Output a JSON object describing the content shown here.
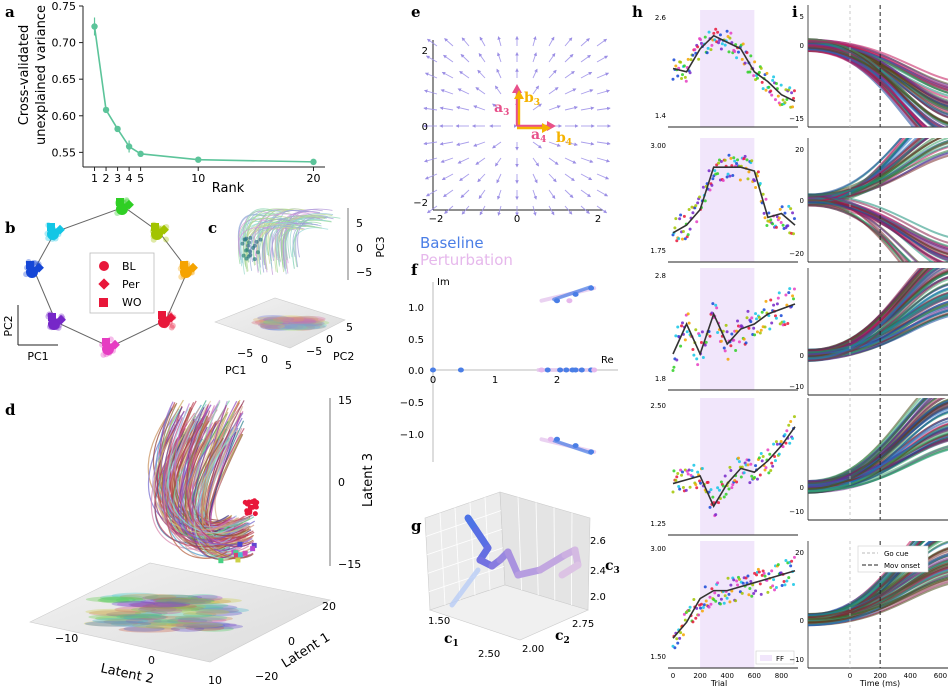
{
  "panel_labels": {
    "a": "a",
    "b": "b",
    "c": "c",
    "d": "d",
    "e": "e",
    "f": "f",
    "g": "g",
    "h": "h",
    "i": "i"
  },
  "panel_a": {
    "ylabel_line1": "Cross-validated",
    "ylabel_line2": "unexplained variance",
    "xlabel": "Rank",
    "yticks": [
      "0.55",
      "0.60",
      "0.65",
      "0.70",
      "0.75"
    ],
    "xticks": [
      "1",
      "2",
      "3",
      "4",
      "5",
      "10",
      "20"
    ]
  },
  "panel_b": {
    "legend": [
      "BL",
      "Per",
      "WO"
    ],
    "axis_pc1": "PC1",
    "axis_pc2": "PC2",
    "colors": [
      "#e8173a",
      "#f5a300",
      "#a2c400",
      "#4ac21a",
      "#13c6e5",
      "#1546d6",
      "#7627c8",
      "#e63dc2"
    ]
  },
  "panel_c": {
    "xlabel": "PC1",
    "ylabel": "PC2",
    "zlabel": "PC3",
    "x_ticks": [
      "−5",
      "0",
      "5"
    ],
    "y_ticks": [
      "−5",
      "0",
      "5"
    ],
    "z_ticks": [
      "5",
      "0",
      "−5"
    ]
  },
  "panel_d": {
    "xlabel": "Latent 2",
    "ylabel": "Latent 1",
    "zlabel": "Latent 3",
    "x_ticks": [
      "−10",
      "0",
      "10"
    ],
    "y_ticks": [
      "20",
      "0",
      "−20"
    ],
    "z_ticks": [
      "15",
      "0",
      "−15"
    ]
  },
  "panel_e": {
    "x_ticks": [
      "−2",
      "0",
      "2"
    ],
    "y_ticks": [
      "2",
      "0",
      "−2"
    ],
    "vectors": {
      "a3": "a",
      "a3_sub": "3",
      "b3": "b",
      "b3_sub": "3",
      "a4": "a",
      "a4_sub": "4",
      "b4": "b",
      "b4_sub": "4"
    }
  },
  "panel_f": {
    "legend_baseline": "Baseline",
    "legend_perturbation": "Perturbation",
    "im_label": "Im",
    "re_label": "Re",
    "x_ticks": [
      "0",
      "1",
      "2"
    ],
    "y_ticks": [
      "1.0",
      "0.5",
      "0.0",
      "−0.5",
      "−1.0"
    ]
  },
  "panel_g": {
    "c1": "c",
    "c1_sub": "1",
    "c2": "c",
    "c2_sub": "2",
    "c3": "c",
    "c3_sub": "3",
    "c1_ticks": [
      "1.50",
      "2.50"
    ],
    "c2_ticks": [
      "2.00",
      "2.75"
    ],
    "c3_ticks": [
      "2.6",
      "2.4",
      "2.0"
    ]
  },
  "panel_h": {
    "xlabel": "Trial",
    "x_ticks": [
      "0",
      "200",
      "400",
      "600",
      "800"
    ],
    "legend": "FF",
    "rows": [
      {
        "yticks": [
          "2.6",
          "1.4"
        ]
      },
      {
        "yticks": [
          "3.00",
          "1.75"
        ]
      },
      {
        "yticks": [
          "2.8",
          "1.8"
        ]
      },
      {
        "yticks": [
          "2.50",
          "1.25"
        ]
      },
      {
        "yticks": [
          "3.00",
          "1.50"
        ]
      }
    ]
  },
  "panel_i": {
    "xlabel": "Time (ms)",
    "x_ticks": [
      "0",
      "200",
      "400",
      "600"
    ],
    "legend_go": "Go cue",
    "legend_mov": "Mov onset",
    "rows": [
      {
        "yticks": [
          "5",
          "0",
          "−15"
        ]
      },
      {
        "yticks": [
          "20",
          "0",
          "−20"
        ]
      },
      {
        "yticks": [
          "0",
          "−10"
        ]
      },
      {
        "yticks": [
          "0",
          "−10"
        ]
      },
      {
        "yticks": [
          "20",
          "0",
          "−10"
        ]
      }
    ]
  },
  "chart_data": [
    {
      "type": "line",
      "panel": "a",
      "x": [
        1,
        2,
        3,
        4,
        5,
        10,
        20
      ],
      "series": [
        {
          "values": [
            0.722,
            0.608,
            0.582,
            0.558,
            0.548,
            0.54,
            0.537
          ]
        }
      ],
      "xlabel": "Rank",
      "ylabel": "Cross-validated unexplained variance",
      "ylim": [
        0.53,
        0.75
      ]
    },
    {
      "type": "scatter",
      "panel": "f",
      "xlabel": "Re",
      "ylabel": "Im",
      "xlim": [
        0,
        2.6
      ],
      "ylim": [
        -1.5,
        1.5
      ],
      "series": [
        {
          "name": "Baseline",
          "x": [
            0,
            0.45,
            1.85,
            2.05,
            2.15,
            2.25,
            2.3,
            2.4,
            2.55,
            2.0,
            2.3,
            2.55
          ],
          "y": [
            0,
            0,
            0,
            0,
            0,
            0,
            0,
            0,
            0,
            1.1,
            1.2,
            1.3
          ]
        },
        {
          "name": "Perturbation",
          "x": [
            1.75,
            2.6,
            2.2,
            1.9
          ],
          "y": [
            0,
            0,
            1.1,
            -1.1
          ]
        }
      ]
    },
    {
      "type": "line",
      "panel": "h",
      "xlabel": "Trial",
      "x": [
        0,
        100,
        200,
        300,
        400,
        500,
        600,
        700,
        800,
        900
      ],
      "series": [
        {
          "values": [
            2.0,
            1.95,
            2.3,
            2.5,
            2.4,
            2.3,
            1.95,
            1.8,
            1.6,
            1.5
          ]
        },
        {
          "values": [
            2.0,
            2.1,
            2.3,
            2.85,
            2.85,
            2.85,
            2.8,
            2.2,
            2.25,
            2.1
          ]
        },
        {
          "values": [
            2.0,
            2.3,
            2.0,
            2.4,
            2.1,
            2.25,
            2.3,
            2.4,
            2.45,
            2.5
          ]
        },
        {
          "values": [
            1.6,
            1.65,
            1.7,
            1.3,
            1.6,
            1.8,
            1.75,
            1.9,
            2.1,
            2.35
          ]
        },
        {
          "values": [
            2.0,
            2.2,
            2.5,
            2.6,
            2.6,
            2.65,
            2.7,
            2.75,
            2.8,
            2.85
          ]
        }
      ]
    }
  ]
}
